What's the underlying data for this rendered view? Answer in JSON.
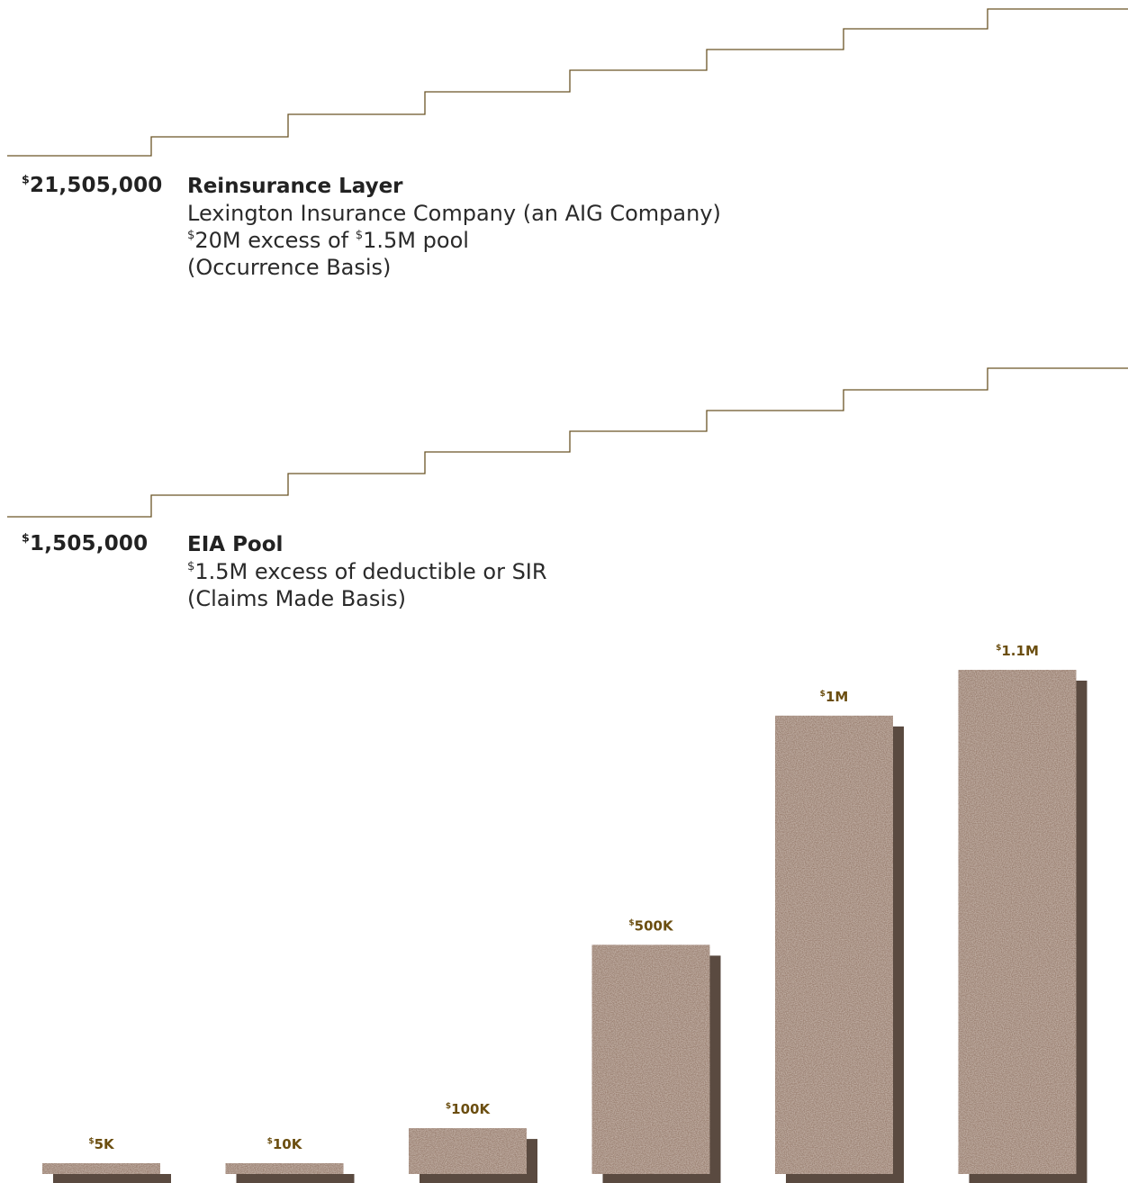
{
  "layers": [
    {
      "amount": "21,505,000",
      "title": "Reinsurance Layer",
      "lines": [
        {
          "parts": [
            "Lexington Insurance Company (an AIG Company)"
          ]
        },
        {
          "parts": [
            "$",
            "20M excess of ",
            "$",
            "1.5M pool"
          ]
        },
        {
          "parts": [
            "(Occurrence Basis)"
          ]
        }
      ]
    },
    {
      "amount": "1,505,000",
      "title": "EIA Pool",
      "lines": [
        {
          "parts": [
            "$",
            "1.5M excess of deductible or SIR"
          ]
        },
        {
          "parts": [
            "(Claims Made Basis)"
          ]
        }
      ]
    }
  ],
  "currency_symbol": "$",
  "colors": {
    "stair_line": "#6b5426",
    "bar_fill": "#9a7f70",
    "bar_shadow": "#5a4a40",
    "bar_label": "#6b4e10",
    "text": "#222222"
  },
  "chart_data": {
    "type": "bar",
    "title": "",
    "categories": [
      "$5K",
      "$10K",
      "$100K",
      "$500K",
      "$1M",
      "$1.1M"
    ],
    "values": [
      5000,
      10000,
      100000,
      500000,
      1000000,
      1100000
    ],
    "labels": [
      "5K",
      "10K",
      "100K",
      "500K",
      "1M",
      "1.1M"
    ],
    "xlabel": "",
    "ylabel": "",
    "grid": false,
    "legend": "none"
  }
}
